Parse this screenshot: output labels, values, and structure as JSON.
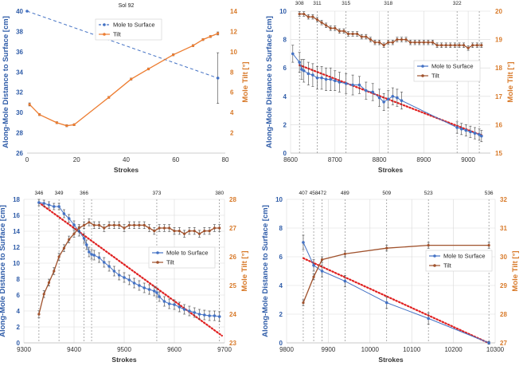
{
  "colors": {
    "mole_series": "#4472c4",
    "mole_axis": "#2f5ca8",
    "tilt_series": "#ed7d31",
    "tilt_series_dark": "#a0522d",
    "tilt_axis": "#d87a2a",
    "trend": "#e02020",
    "grid": "#d9d9d9",
    "vline": "#777777"
  },
  "chart_data": [
    {
      "type": "line",
      "panel": "top-left",
      "title": "Sol 92",
      "xlabel": "Strokes",
      "ylabel_left": "Along-Mole Distance to Surface  [cm]",
      "ylabel_right": "Mole Tilt  [°]",
      "xlim": [
        0,
        80
      ],
      "xticks": [
        0,
        20,
        40,
        60,
        80
      ],
      "ylim_left": [
        26,
        40
      ],
      "yticks_left": [
        26,
        28,
        30,
        32,
        34,
        36,
        38,
        40
      ],
      "ylim_right": [
        0,
        14
      ],
      "yticks_right": [
        2,
        4,
        6,
        8,
        10,
        12,
        14
      ],
      "legend": {
        "position": "top-right",
        "entries": [
          "Mole to Surface",
          "Tilt"
        ]
      },
      "gridlines": false,
      "sol_labels": [],
      "series": [
        {
          "name": "Mole to Surface",
          "axis": "left",
          "style": "dashed-markers",
          "x": [
            0,
            77
          ],
          "y": [
            40.0,
            33.4
          ],
          "err": [
            0,
            2.5
          ]
        },
        {
          "name": "Tilt",
          "axis": "right",
          "style": "line-markers",
          "x": [
            1,
            5,
            12,
            16,
            19,
            33,
            42,
            49,
            59,
            67,
            71,
            74,
            77
          ],
          "y": [
            4.8,
            3.8,
            3.0,
            2.7,
            2.8,
            5.5,
            7.3,
            8.3,
            9.7,
            10.6,
            11.2,
            11.5,
            11.8
          ],
          "err": [
            0.15,
            0.1,
            0.1,
            0.1,
            0.1,
            0.1,
            0.1,
            0.1,
            0.1,
            0.1,
            0.1,
            0.1,
            0.15
          ]
        }
      ]
    },
    {
      "type": "line",
      "panel": "top-right",
      "xlabel": "Strokes",
      "ylabel_left": "Along-Mole Distance to Surface  [cm]",
      "ylabel_right": "Mole Tilt  [°]",
      "xlim": [
        8600,
        9050
      ],
      "xticks": [
        8600,
        8700,
        8800,
        8900,
        9000
      ],
      "ylim_left": [
        0,
        10
      ],
      "yticks_left": [
        0,
        2,
        4,
        6,
        8,
        10
      ],
      "ylim_right": [
        15,
        20
      ],
      "yticks_right": [
        15,
        16,
        17,
        18,
        19,
        20
      ],
      "legend": {
        "position": "center-right",
        "entries": [
          "Mole to Surface",
          "Tilt"
        ]
      },
      "gridlines": true,
      "sol_labels": [
        {
          "label": "308",
          "x": 8620
        },
        {
          "label": "311",
          "x": 8660
        },
        {
          "label": "315",
          "x": 8725
        },
        {
          "label": "318",
          "x": 8820
        },
        {
          "label": "322",
          "x": 8975
        },
        {
          "label": "",
          "x": 9025
        }
      ],
      "trend": {
        "x": [
          8620,
          9035
        ],
        "y": [
          6.2,
          1.2
        ]
      },
      "series": [
        {
          "name": "Mole to Surface",
          "axis": "left",
          "style": "line-errorbars",
          "x": [
            8605,
            8620,
            8625,
            8630,
            8640,
            8650,
            8660,
            8670,
            8680,
            8690,
            8700,
            8710,
            8725,
            8740,
            8755,
            8770,
            8785,
            8800,
            8810,
            8820,
            8830,
            8840,
            8850,
            8975,
            8985,
            8995,
            9005,
            9015,
            9025,
            9030
          ],
          "y": [
            7.0,
            6.4,
            5.9,
            5.8,
            5.6,
            5.5,
            5.3,
            5.3,
            5.2,
            5.2,
            5.1,
            5.0,
            4.9,
            4.8,
            4.8,
            4.4,
            4.3,
            3.9,
            3.6,
            3.8,
            4.0,
            3.9,
            3.7,
            1.8,
            1.7,
            1.6,
            1.5,
            1.4,
            1.3,
            1.2
          ],
          "err": [
            0.6,
            0.7,
            0.7,
            0.8,
            0.8,
            0.8,
            0.8,
            0.8,
            0.8,
            0.8,
            0.7,
            0.7,
            0.7,
            0.7,
            0.6,
            0.6,
            0.6,
            0.6,
            0.6,
            0.6,
            0.6,
            0.6,
            0.6,
            0.4,
            0.4,
            0.4,
            0.4,
            0.4,
            0.4,
            0.4
          ]
        },
        {
          "name": "Tilt",
          "axis": "right",
          "style": "line-errorbars",
          "x": [
            8620,
            8630,
            8640,
            8650,
            8660,
            8670,
            8680,
            8690,
            8700,
            8710,
            8720,
            8730,
            8740,
            8750,
            8760,
            8770,
            8780,
            8790,
            8800,
            8810,
            8820,
            8830,
            8840,
            8850,
            8860,
            8870,
            8880,
            8890,
            8900,
            8910,
            8920,
            8930,
            8940,
            8950,
            8960,
            8970,
            8980,
            8990,
            9000,
            9010,
            9020,
            9030
          ],
          "y": [
            19.9,
            19.9,
            19.8,
            19.8,
            19.7,
            19.6,
            19.5,
            19.4,
            19.4,
            19.3,
            19.3,
            19.2,
            19.2,
            19.2,
            19.1,
            19.1,
            19.0,
            18.9,
            18.9,
            18.8,
            18.9,
            18.9,
            19.0,
            19.0,
            19.0,
            18.9,
            18.9,
            18.9,
            18.9,
            18.9,
            18.9,
            18.8,
            18.8,
            18.8,
            18.8,
            18.8,
            18.8,
            18.8,
            18.7,
            18.8,
            18.8,
            18.8
          ],
          "err": [
            0.08,
            0.08,
            0.08,
            0.08,
            0.08,
            0.08,
            0.08,
            0.08,
            0.08,
            0.08,
            0.08,
            0.08,
            0.08,
            0.08,
            0.08,
            0.08,
            0.08,
            0.08,
            0.08,
            0.08,
            0.08,
            0.08,
            0.08,
            0.08,
            0.08,
            0.08,
            0.08,
            0.08,
            0.08,
            0.08,
            0.08,
            0.08,
            0.08,
            0.08,
            0.08,
            0.08,
            0.08,
            0.08,
            0.08,
            0.08,
            0.08,
            0.08
          ]
        }
      ]
    },
    {
      "type": "line",
      "panel": "bottom-left",
      "xlabel": "Strokes",
      "ylabel_left": "Along-Mole Distance to Surface  [cm]",
      "ylabel_right": "Mole Tilt  [°]",
      "xlim": [
        9300,
        9700
      ],
      "xticks": [
        9300,
        9400,
        9500,
        9600,
        9700
      ],
      "ylim_left": [
        0,
        18
      ],
      "yticks_left": [
        0,
        2,
        4,
        6,
        8,
        10,
        12,
        14,
        16,
        18
      ],
      "ylim_right": [
        23,
        28
      ],
      "yticks_right": [
        23,
        24,
        25,
        26,
        27,
        28
      ],
      "legend": {
        "position": "center-right",
        "entries": [
          "Mole to Surface",
          "Tilt"
        ]
      },
      "gridlines": true,
      "sol_labels": [
        {
          "label": "346",
          "x": 9330
        },
        {
          "label": "349",
          "x": 9370
        },
        {
          "label": "366",
          "x": 9420
        },
        {
          "label": "",
          "x": 9435
        },
        {
          "label": "373",
          "x": 9565
        },
        {
          "label": "380",
          "x": 9690
        }
      ],
      "trend": {
        "x": [
          9330,
          9695
        ],
        "y": [
          17.6,
          0.9
        ]
      },
      "series": [
        {
          "name": "Mole to Surface",
          "axis": "left",
          "style": "line-errorbars",
          "x": [
            9330,
            9340,
            9350,
            9360,
            9370,
            9380,
            9390,
            9400,
            9410,
            9420,
            9425,
            9430,
            9435,
            9440,
            9450,
            9460,
            9470,
            9480,
            9490,
            9500,
            9510,
            9520,
            9530,
            9540,
            9550,
            9560,
            9565,
            9570,
            9580,
            9590,
            9600,
            9610,
            9620,
            9630,
            9640,
            9650,
            9660,
            9670,
            9680,
            9690
          ],
          "y": [
            17.6,
            17.5,
            17.3,
            17.1,
            17.1,
            16.2,
            15.6,
            14.8,
            14.0,
            13.1,
            12.3,
            11.4,
            11.1,
            11.0,
            10.7,
            10.1,
            9.6,
            9.0,
            8.5,
            8.2,
            7.9,
            7.5,
            7.2,
            6.9,
            6.7,
            6.5,
            6.3,
            5.8,
            5.2,
            4.9,
            4.8,
            4.5,
            4.2,
            4.0,
            3.8,
            3.6,
            3.5,
            3.4,
            3.4,
            3.3
          ],
          "err": [
            0.4,
            0.4,
            0.4,
            0.4,
            0.4,
            0.5,
            0.5,
            0.5,
            0.6,
            0.6,
            0.6,
            0.6,
            0.6,
            0.6,
            0.6,
            0.6,
            0.6,
            0.6,
            0.6,
            0.6,
            0.6,
            0.6,
            0.6,
            0.6,
            0.6,
            0.6,
            0.6,
            0.6,
            0.6,
            0.6,
            0.6,
            0.6,
            0.6,
            0.6,
            0.6,
            0.6,
            0.6,
            0.6,
            0.6,
            0.6
          ]
        },
        {
          "name": "Tilt",
          "axis": "right",
          "style": "line-errorbars",
          "x": [
            9330,
            9340,
            9350,
            9360,
            9370,
            9380,
            9390,
            9400,
            9410,
            9420,
            9430,
            9440,
            9450,
            9460,
            9470,
            9480,
            9490,
            9500,
            9510,
            9520,
            9530,
            9540,
            9550,
            9560,
            9570,
            9580,
            9590,
            9600,
            9610,
            9620,
            9630,
            9640,
            9650,
            9660,
            9670,
            9680,
            9690
          ],
          "y": [
            24.0,
            24.7,
            25.1,
            25.5,
            26.0,
            26.3,
            26.6,
            26.8,
            27.0,
            27.1,
            27.2,
            27.1,
            27.1,
            27.0,
            27.1,
            27.1,
            27.1,
            27.0,
            27.1,
            27.1,
            27.1,
            27.1,
            27.0,
            26.9,
            27.0,
            27.0,
            27.0,
            26.9,
            26.9,
            26.8,
            26.9,
            26.9,
            26.8,
            26.9,
            26.9,
            27.0,
            27.0
          ],
          "err": [
            0.12,
            0.12,
            0.12,
            0.12,
            0.12,
            0.12,
            0.12,
            0.12,
            0.12,
            0.12,
            0.12,
            0.12,
            0.12,
            0.12,
            0.12,
            0.12,
            0.12,
            0.12,
            0.12,
            0.12,
            0.12,
            0.12,
            0.12,
            0.12,
            0.12,
            0.12,
            0.12,
            0.12,
            0.12,
            0.12,
            0.12,
            0.12,
            0.12,
            0.12,
            0.12,
            0.12,
            0.12
          ]
        }
      ]
    },
    {
      "type": "line",
      "panel": "bottom-right",
      "xlabel": "Strokes",
      "ylabel_left": "Along-Mole Distance to Surface  [cm]",
      "ylabel_right": "Mole Tilt  [°]",
      "xlim": [
        9800,
        10300
      ],
      "xticks": [
        9800,
        9900,
        10000,
        10100,
        10200,
        10300
      ],
      "ylim_left": [
        0,
        10
      ],
      "yticks_left": [
        0,
        2,
        4,
        6,
        8,
        10
      ],
      "ylim_right": [
        27,
        32
      ],
      "yticks_right": [
        27,
        28,
        29,
        30,
        31,
        32
      ],
      "legend": {
        "position": "center-right",
        "entries": [
          "Mole to Surface",
          "Tilt"
        ]
      },
      "gridlines": true,
      "sol_labels": [
        {
          "label": "407",
          "x": 9840
        },
        {
          "label": "458",
          "x": 9865
        },
        {
          "label": "472",
          "x": 9885
        },
        {
          "label": "489",
          "x": 9940
        },
        {
          "label": "509",
          "x": 10040
        },
        {
          "label": "523",
          "x": 10140
        },
        {
          "label": "536",
          "x": 10285
        }
      ],
      "trend": {
        "x": [
          9840,
          10280
        ],
        "y": [
          5.9,
          0.05
        ]
      },
      "series": [
        {
          "name": "Mole to Surface",
          "axis": "left",
          "style": "line-errorbars",
          "x": [
            9840,
            9865,
            9885,
            9940,
            10040,
            10140,
            10285
          ],
          "y": [
            7.0,
            5.4,
            5.0,
            4.3,
            2.8,
            1.7,
            0.0
          ],
          "err": [
            0.5,
            0.4,
            0.4,
            0.4,
            0.4,
            0.4,
            0.1
          ]
        },
        {
          "name": "Tilt",
          "axis": "right",
          "style": "line-markers",
          "x": [
            9840,
            9865,
            9885,
            9940,
            10040,
            10140,
            10285
          ],
          "y": [
            28.4,
            29.3,
            29.9,
            30.1,
            30.3,
            30.4,
            30.4
          ],
          "err": [
            0.1,
            0.1,
            0.1,
            0.1,
            0.1,
            0.1,
            0.1
          ]
        }
      ]
    }
  ]
}
